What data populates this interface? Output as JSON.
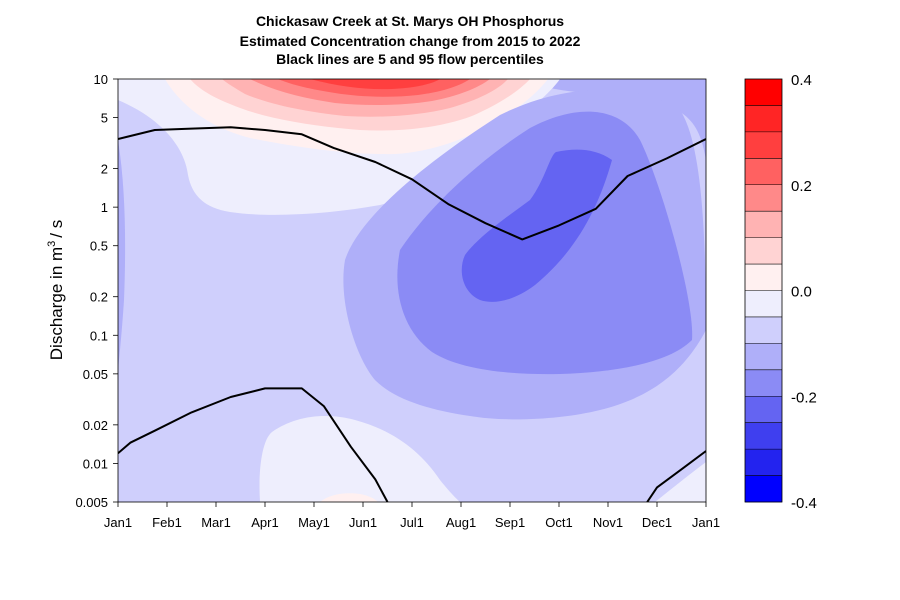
{
  "chart_data": {
    "type": "heatmap",
    "title_lines": [
      "Chickasaw Creek at St. Marys OH  Phosphorus",
      "Estimated Concentration change from 2015 to 2022",
      "Black lines are 5 and 95 flow percentiles"
    ],
    "ylabel": "Discharge in m3/s",
    "ylabel_main": "Discharge in m",
    "ylabel_sup": "3",
    "ylabel_tail": "/ s",
    "xlabel": "",
    "x_ticks": [
      "Jan1",
      "Feb1",
      "Mar1",
      "Apr1",
      "May1",
      "Jun1",
      "Jul1",
      "Aug1",
      "Sep1",
      "Oct1",
      "Nov1",
      "Dec1",
      "Jan1"
    ],
    "y_ticks": [
      {
        "value": 10,
        "label": "10"
      },
      {
        "value": 5,
        "label": "5"
      },
      {
        "value": 2,
        "label": "2"
      },
      {
        "value": 1,
        "label": "1"
      },
      {
        "value": 0.5,
        "label": "0.5"
      },
      {
        "value": 0.2,
        "label": "0.2"
      },
      {
        "value": 0.1,
        "label": "0.1"
      },
      {
        "value": 0.05,
        "label": "0.05"
      },
      {
        "value": 0.02,
        "label": "0.02"
      },
      {
        "value": 0.01,
        "label": "0.01"
      },
      {
        "value": 0.005,
        "label": "0.005"
      }
    ],
    "y_scale": "log",
    "ylim": [
      0.005,
      10
    ],
    "xlim_months": [
      0,
      12
    ],
    "colorbar": {
      "range": [
        -0.4,
        0.4
      ],
      "labels": [
        {
          "value": 0.4,
          "label": "0.4"
        },
        {
          "value": 0.2,
          "label": "0.2"
        },
        {
          "value": 0.0,
          "label": "0.0"
        },
        {
          "value": -0.2,
          "label": "-0.2"
        },
        {
          "value": -0.4,
          "label": "-0.4"
        }
      ],
      "colors_top_to_bottom": [
        "#ff0000",
        "#ff2525",
        "#ff3f3f",
        "#ff6161",
        "#ff8989",
        "#ffb3b3",
        "#ffd3d3",
        "#fff0f0",
        "#eeeefd",
        "#cfcffc",
        "#afaff9",
        "#8b8bf5",
        "#6464f2",
        "#3f3fef",
        "#2323ef",
        "#0000ff"
      ]
    },
    "contour_fills": [
      {
        "name": "base",
        "color": "#cfcffc"
      },
      {
        "name": "red-bloom-1",
        "color": "#fff0f0"
      },
      {
        "name": "red-bloom-2",
        "color": "#ffd3d3"
      },
      {
        "name": "red-bloom-3",
        "color": "#ffb3b3"
      },
      {
        "name": "red-bloom-4",
        "color": "#ff8989"
      },
      {
        "name": "red-bloom-5",
        "color": "#ff6161"
      },
      {
        "name": "red-bloom-6",
        "color": "#ff3f3f"
      },
      {
        "name": "near-zero-upper",
        "color": "#eeeefd"
      },
      {
        "name": "near-zero-lower",
        "color": "#eeeefd"
      },
      {
        "name": "blue-ring-1",
        "color": "#afaff9"
      },
      {
        "name": "blue-ring-2",
        "color": "#8b8bf5"
      },
      {
        "name": "blue-core",
        "color": "#6464f2"
      },
      {
        "name": "top-right-blue",
        "color": "#afaff9"
      },
      {
        "name": "left-lobe",
        "color": "#afaff9"
      },
      {
        "name": "bottom-right-light",
        "color": "#eeeefd"
      },
      {
        "name": "bottom-pink",
        "color": "#fff0f0"
      }
    ],
    "flow_percentiles": [
      {
        "name": "95",
        "points": [
          [
            0.0,
            3.4
          ],
          [
            0.75,
            4.0
          ],
          [
            1.5,
            4.1
          ],
          [
            2.3,
            4.2
          ],
          [
            3.0,
            4.0
          ],
          [
            3.75,
            3.7
          ],
          [
            4.4,
            2.9
          ],
          [
            5.25,
            2.25
          ],
          [
            6.0,
            1.65
          ],
          [
            6.75,
            1.05
          ],
          [
            7.5,
            0.75
          ],
          [
            8.25,
            0.56
          ],
          [
            9.0,
            0.72
          ],
          [
            9.75,
            0.97
          ],
          [
            10.4,
            1.75
          ],
          [
            11.2,
            2.4
          ],
          [
            12.0,
            3.4
          ]
        ]
      },
      {
        "name": "5",
        "points": [
          [
            0.0,
            0.012
          ],
          [
            0.25,
            0.0145
          ],
          [
            0.75,
            0.018
          ],
          [
            1.5,
            0.025
          ],
          [
            2.3,
            0.033
          ],
          [
            3.0,
            0.0385
          ],
          [
            3.75,
            0.0385
          ],
          [
            4.2,
            0.028
          ],
          [
            4.75,
            0.0135
          ],
          [
            5.25,
            0.0075
          ],
          [
            5.5,
            0.005
          ]
        ]
      },
      {
        "name": "5-tail",
        "points": [
          [
            10.8,
            0.005
          ],
          [
            11.0,
            0.0065
          ],
          [
            11.5,
            0.009
          ],
          [
            12.0,
            0.0125
          ]
        ]
      }
    ]
  }
}
